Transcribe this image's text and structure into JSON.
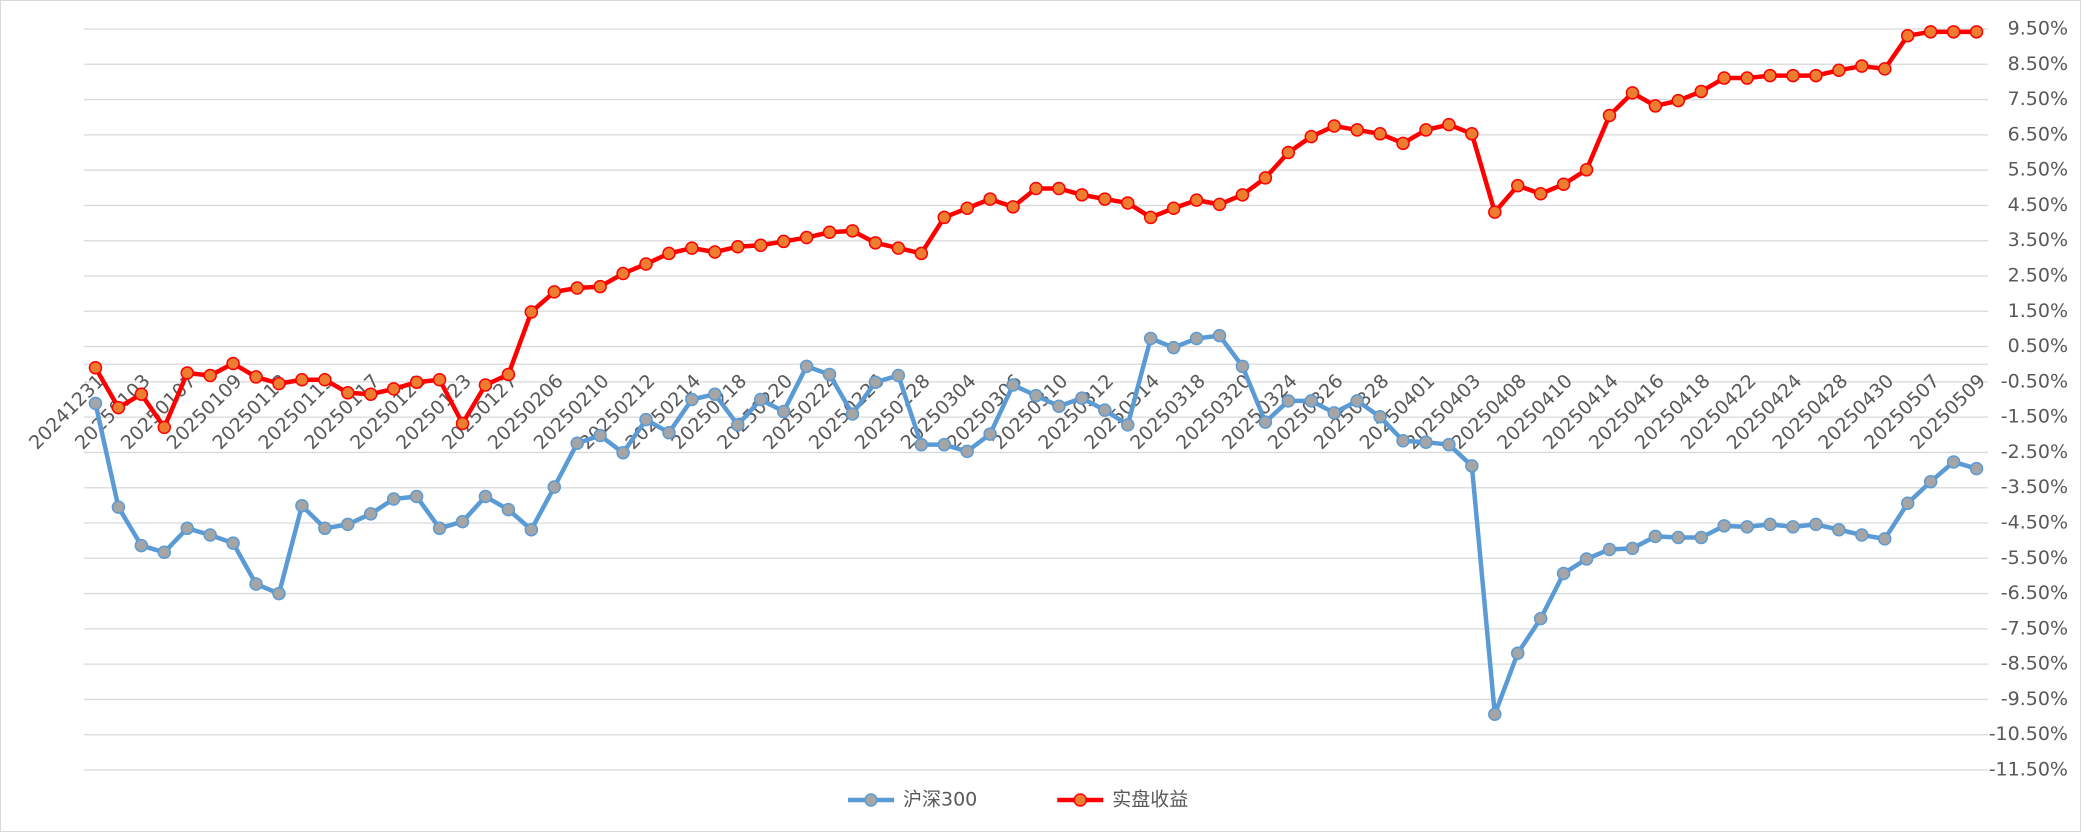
{
  "chart_data": {
    "type": "line",
    "categories": [
      "20241231",
      null,
      "20250103",
      null,
      "20250107",
      null,
      "20250109",
      null,
      "20250113",
      null,
      "20250115",
      null,
      "20250117",
      null,
      "20250121",
      null,
      "20250123",
      null,
      "20250127",
      null,
      "20250206",
      null,
      "20250210",
      null,
      "20250212",
      null,
      "20250214",
      null,
      "20250218",
      null,
      "20250220",
      null,
      "20250224",
      null,
      "20250226",
      null,
      "20250228",
      null,
      "20250304",
      null,
      "20250306",
      null,
      "20250310",
      null,
      "20250312",
      null,
      "20250314",
      null,
      "20250318",
      null,
      "20250320",
      null,
      "20250324",
      null,
      "20250326",
      null,
      "20250328",
      null,
      "20250401",
      null,
      "20250403",
      null,
      "20250408",
      null,
      "20250410",
      null,
      "20250414",
      null,
      "20250416",
      null,
      "20250418",
      null,
      "20250422",
      null,
      "20250424",
      null,
      "20250428",
      null,
      "20250430",
      null,
      "20250507",
      null,
      "20250509"
    ],
    "series": [
      {
        "name": "沪深300",
        "color": "#5b9bd5",
        "marker_fill": "#a5a5a5",
        "values": [
          -1.11,
          -4.05,
          -5.14,
          -5.33,
          -4.65,
          -4.84,
          -5.07,
          -6.23,
          -6.5,
          -4.01,
          -4.65,
          -4.54,
          -4.24,
          -3.82,
          -3.75,
          -4.65,
          -4.46,
          -3.75,
          -4.12,
          -4.69,
          -3.48,
          -2.24,
          -2.02,
          -2.51,
          -1.57,
          -1.94,
          -1.0,
          -0.85,
          -1.72,
          -1.0,
          -1.34,
          -0.06,
          -0.29,
          -1.41,
          -0.51,
          -0.32,
          -2.28,
          -2.28,
          -2.47,
          -1.98,
          -0.59,
          -0.89,
          -1.19,
          -0.96,
          -1.3,
          -1.72,
          0.73,
          0.47,
          0.73,
          0.81,
          -0.06,
          -1.64,
          -1.04,
          -1.04,
          -1.38,
          -1.04,
          -1.49,
          -2.17,
          -2.21,
          -2.28,
          -2.88,
          -9.92,
          -8.19,
          -7.21,
          -5.93,
          -5.52,
          -5.25,
          -5.22,
          -4.88,
          -4.91,
          -4.91,
          -4.58,
          -4.61,
          -4.54,
          -4.61,
          -4.54,
          -4.69,
          -4.84,
          -4.95,
          -3.94,
          -3.33,
          -2.77,
          -2.96
        ]
      },
      {
        "name": "实盘收益",
        "color": "#ff0000",
        "marker_fill": "#ed7d31",
        "values": [
          -0.1,
          -1.23,
          -0.85,
          -1.79,
          -0.25,
          -0.32,
          0.02,
          -0.36,
          -0.55,
          -0.44,
          -0.44,
          -0.81,
          -0.85,
          -0.7,
          -0.51,
          -0.44,
          -1.68,
          -0.59,
          -0.29,
          1.48,
          2.05,
          2.16,
          2.2,
          2.57,
          2.84,
          3.14,
          3.29,
          3.18,
          3.33,
          3.37,
          3.48,
          3.59,
          3.74,
          3.78,
          3.44,
          3.29,
          3.14,
          4.16,
          4.42,
          4.68,
          4.46,
          4.98,
          4.98,
          4.8,
          4.68,
          4.57,
          4.16,
          4.42,
          4.65,
          4.53,
          4.8,
          5.28,
          6.0,
          6.45,
          6.75,
          6.64,
          6.53,
          6.26,
          6.64,
          6.79,
          6.53,
          4.31,
          5.06,
          4.83,
          5.1,
          5.51,
          7.05,
          7.69,
          7.32,
          7.47,
          7.73,
          8.11,
          8.11,
          8.18,
          8.18,
          8.18,
          8.33,
          8.45,
          8.37,
          9.31,
          9.42,
          9.42,
          9.42
        ]
      }
    ],
    "ylim": [
      -11.5,
      9.5
    ],
    "yticks": [
      {
        "value": 9.5,
        "label": "9.50%"
      },
      {
        "value": 8.5,
        "label": "8.50%"
      },
      {
        "value": 7.5,
        "label": "7.50%"
      },
      {
        "value": 6.5,
        "label": "6.50%"
      },
      {
        "value": 5.5,
        "label": "5.50%"
      },
      {
        "value": 4.5,
        "label": "4.50%"
      },
      {
        "value": 3.5,
        "label": "3.50%"
      },
      {
        "value": 2.5,
        "label": "2.50%"
      },
      {
        "value": 1.5,
        "label": "1.50%"
      },
      {
        "value": 0.5,
        "label": "0.50%"
      },
      {
        "value": -0.5,
        "label": "-0.50%"
      },
      {
        "value": -1.5,
        "label": "-1.50%"
      },
      {
        "value": -2.5,
        "label": "-2.50%"
      },
      {
        "value": -3.5,
        "label": "-3.50%"
      },
      {
        "value": -4.5,
        "label": "-4.50%"
      },
      {
        "value": -5.5,
        "label": "-5.50%"
      },
      {
        "value": -6.5,
        "label": "-6.50%"
      },
      {
        "value": -7.5,
        "label": "-7.50%"
      },
      {
        "value": -8.5,
        "label": "-8.50%"
      },
      {
        "value": -9.5,
        "label": "-9.50%"
      },
      {
        "value": -10.5,
        "label": "-10.50%"
      },
      {
        "value": -11.5,
        "label": "-11.50%"
      }
    ],
    "grid": true,
    "legend": "bottom"
  }
}
